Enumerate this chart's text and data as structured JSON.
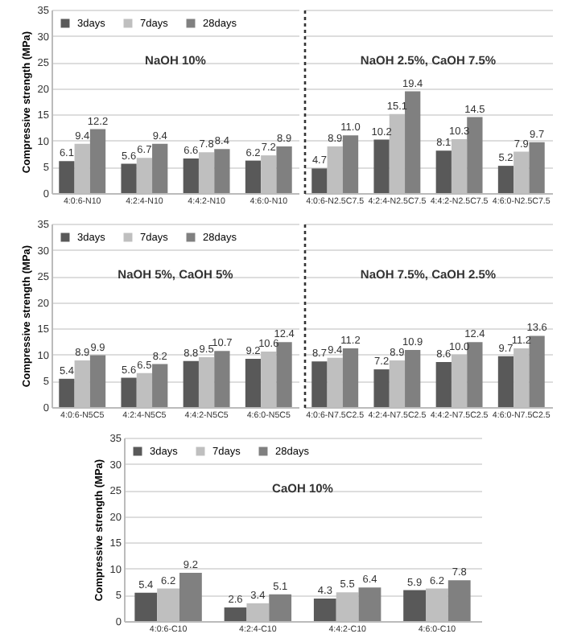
{
  "chart_data": [
    {
      "type": "bar",
      "categories": [
        "4:0:6-N10",
        "4:2:4-N10",
        "4:4:2-N10",
        "4:6:0-N10"
      ],
      "ylabel": "Compressive strength (MPa)",
      "annotations": [
        "NaOH 10%"
      ],
      "ylim": [
        0,
        35
      ],
      "yticks": [
        0,
        5,
        10,
        15,
        20,
        25,
        30,
        35
      ],
      "grid": "y",
      "legend": "top left",
      "data_labels": true,
      "series": [
        {
          "name": "3days",
          "color": "#595959",
          "values": [
            6.1,
            5.6,
            6.6,
            6.2
          ]
        },
        {
          "name": "7days",
          "color": "#bfbfbf",
          "values": [
            9.4,
            6.7,
            7.8,
            7.2
          ]
        },
        {
          "name": "28days",
          "color": "#808080",
          "values": [
            12.2,
            9.4,
            8.4,
            8.9
          ]
        }
      ]
    },
    {
      "type": "bar",
      "categories": [
        "4:0:6-N2.5C7.5",
        "4:2:4-N2.5C7.5",
        "4:4:2-N2.5C7.5",
        "4:6:0-N2.5C7.5"
      ],
      "annotations": [
        "NaOH 2.5%, CaOH 7.5%"
      ],
      "ylim": [
        0,
        35
      ],
      "yticks": [
        0,
        5,
        10,
        15,
        20,
        25,
        30,
        35
      ],
      "grid": "y",
      "tick_labels": "x",
      "data_labels": true,
      "series": [
        {
          "color": "#595959",
          "values": [
            4.7,
            10.2,
            8.1,
            5.2
          ]
        },
        {
          "color": "#bfbfbf",
          "values": [
            8.9,
            15.1,
            10.3,
            7.9
          ]
        },
        {
          "color": "#808080",
          "values": [
            11.0,
            19.4,
            14.5,
            9.7
          ],
          "value_labels": [
            "11.0",
            "19.4",
            "14.5",
            "9.7"
          ]
        }
      ]
    },
    {
      "type": "bar",
      "categories": [
        "4:0:6-N5C5",
        "4:2:4-N5C5",
        "4:4:2-N5C5",
        "4:6:0-N5C5"
      ],
      "ylabel": "Compressive strength (MPa)",
      "annotations": [
        "NaOH 5%, CaOH 5%"
      ],
      "ylim": [
        0,
        35
      ],
      "yticks": [
        0,
        5,
        10,
        15,
        20,
        25,
        30,
        35
      ],
      "grid": "y",
      "legend": "top left",
      "data_labels": true,
      "series": [
        {
          "name": "3days",
          "color": "#595959",
          "values": [
            5.4,
            5.6,
            8.8,
            9.2
          ]
        },
        {
          "name": "7days",
          "color": "#bfbfbf",
          "values": [
            8.9,
            6.5,
            9.5,
            10.6
          ]
        },
        {
          "name": "28days",
          "color": "#808080",
          "values": [
            9.9,
            8.2,
            10.7,
            12.4
          ]
        }
      ]
    },
    {
      "type": "bar",
      "categories": [
        "4:0:6-N7.5C2.5",
        "4:2:4-N7.5C2.5",
        "4:4:2-N7.5C2.5",
        "4:6:0-N7.5C2.5"
      ],
      "annotations": [
        "NaOH 7.5%, CaOH 2.5%"
      ],
      "ylim": [
        0,
        35
      ],
      "yticks": [
        0,
        5,
        10,
        15,
        20,
        25,
        30,
        35
      ],
      "grid": "y",
      "tick_labels": "x",
      "data_labels": true,
      "series": [
        {
          "color": "#595959",
          "values": [
            8.7,
            7.2,
            8.6,
            9.7
          ]
        },
        {
          "color": "#bfbfbf",
          "values": [
            9.4,
            8.9,
            10.0,
            11.2
          ],
          "value_labels": [
            "9.4",
            "8.9",
            "10.0",
            "11.2"
          ]
        },
        {
          "color": "#808080",
          "values": [
            11.2,
            10.9,
            12.4,
            13.6
          ]
        }
      ]
    },
    {
      "type": "bar",
      "categories": [
        "4:0:6-C10",
        "4:2:4-C10",
        "4:4:2-C10",
        "4:6:0-C10"
      ],
      "ylabel": "Compressive strength (MPa)",
      "annotations": [
        "CaOH 10%"
      ],
      "ylim": [
        0,
        35
      ],
      "yticks": [
        0,
        5,
        10,
        15,
        20,
        25,
        30,
        35
      ],
      "grid": "y",
      "legend": "top left",
      "data_labels": true,
      "series": [
        {
          "name": "3days",
          "color": "#595959",
          "values": [
            5.4,
            2.6,
            4.3,
            5.9
          ]
        },
        {
          "name": "7days",
          "color": "#bfbfbf",
          "values": [
            6.2,
            3.4,
            5.5,
            6.2
          ]
        },
        {
          "name": "28days",
          "color": "#808080",
          "values": [
            9.2,
            5.1,
            6.4,
            7.8
          ]
        }
      ]
    }
  ]
}
